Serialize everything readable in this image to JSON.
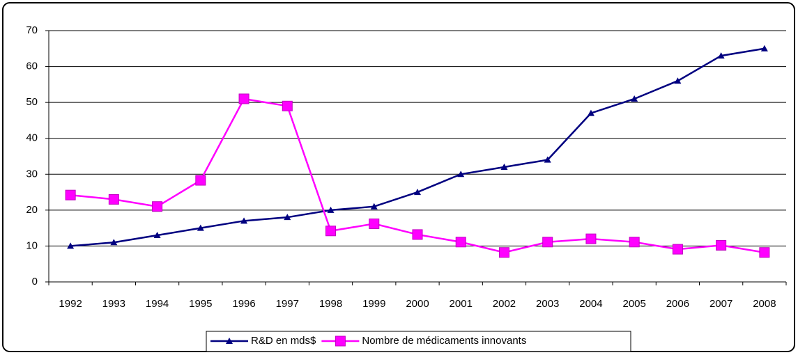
{
  "chart_data": {
    "type": "line",
    "categories": [
      "1992",
      "1993",
      "1994",
      "1995",
      "1996",
      "1997",
      "1998",
      "1999",
      "2000",
      "2001",
      "2002",
      "2003",
      "2004",
      "2005",
      "2006",
      "2007",
      "2008"
    ],
    "series": [
      {
        "name": "R&D en mds$",
        "color": "#000080",
        "marker": "triangle",
        "values": [
          10,
          11,
          13,
          15,
          17,
          18,
          20,
          21,
          25,
          30,
          32,
          34,
          47,
          51,
          56,
          63,
          65
        ]
      },
      {
        "name": "Nombre de médicaments innovants",
        "color": "#ff00ff",
        "marker": "square",
        "values": [
          24.2,
          23,
          21,
          28.3,
          51,
          49,
          14.2,
          16.2,
          13.2,
          11.1,
          8.2,
          11.1,
          12,
          11.1,
          9.1,
          10.2,
          8.2
        ]
      }
    ],
    "ylim": [
      0,
      70
    ],
    "yticks": [
      0,
      10,
      20,
      30,
      40,
      50,
      60,
      70
    ],
    "grid": true,
    "legend": "bottom"
  }
}
